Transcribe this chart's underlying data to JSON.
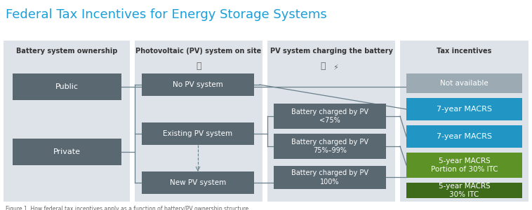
{
  "title": "Federal Tax Incentives for Energy Storage Systems",
  "title_color": "#1a9fdb",
  "title_fontsize": 13,
  "bg_color": "#dde3e8",
  "white": "#ffffff",
  "box_color_dark": "#5a6872",
  "blue_color": "#2196c4",
  "green_color": "#5c9226",
  "green_dark_color": "#3d6b1a",
  "not_avail_color": "#9baab3",
  "line_color": "#6a7f8c",
  "footer_color": "#666666",
  "col_headers": [
    "Battery system ownership",
    "Photovoltaic (PV) system on site",
    "PV system charging the battery",
    "Tax incentives"
  ]
}
